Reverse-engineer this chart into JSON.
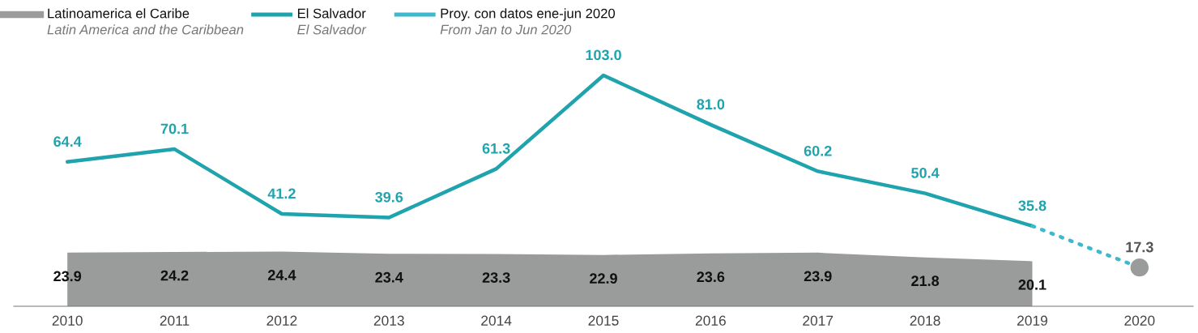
{
  "chart_data": {
    "type": "line",
    "categories": [
      "2010",
      "2011",
      "2012",
      "2013",
      "2014",
      "2015",
      "2016",
      "2017",
      "2018",
      "2019",
      "2020"
    ],
    "tick_labels": "x",
    "grid": false,
    "legend": "top left",
    "series": [
      {
        "name": "Latinoamerica el Caribe\nLatin America and the Caribbean",
        "type": "area",
        "color": "#9a9b9b",
        "values": [
          23.9,
          24.2,
          24.4,
          23.4,
          23.3,
          22.9,
          23.6,
          23.9,
          21.8,
          20.1,
          null
        ],
        "value_labels": [
          "23.9",
          "24.2",
          "24.4",
          "23.4",
          "23.3",
          "22.9",
          "23.6",
          "23.9",
          "21.8",
          "20.1",
          null
        ]
      },
      {
        "name": "El Salvador\nEl Salvador",
        "color": "#1fa3ad",
        "values": [
          64.4,
          70.1,
          41.2,
          39.6,
          61.3,
          103.0,
          81.0,
          60.2,
          50.4,
          35.8,
          null
        ],
        "value_labels": [
          "64.4",
          "70.1",
          "41.2",
          "39.6",
          "61.3",
          "103.0",
          "81.0",
          "60.2",
          "50.4",
          "35.8",
          null
        ]
      },
      {
        "name": "Proy. con datos ene-jun 2020\nFrom Jan to Jun 2020",
        "line_style": "dotted",
        "color": "#3db8cc",
        "values": [
          null,
          null,
          null,
          null,
          null,
          null,
          null,
          null,
          null,
          35.8,
          17.3
        ]
      },
      {
        "type": "scatter",
        "marker": "circle",
        "color": "#9a9b9b",
        "values": [
          null,
          null,
          null,
          null,
          null,
          null,
          null,
          null,
          null,
          null,
          17.3
        ],
        "value_labels": [
          null,
          null,
          null,
          null,
          null,
          null,
          null,
          null,
          null,
          null,
          "17.3"
        ]
      }
    ]
  }
}
